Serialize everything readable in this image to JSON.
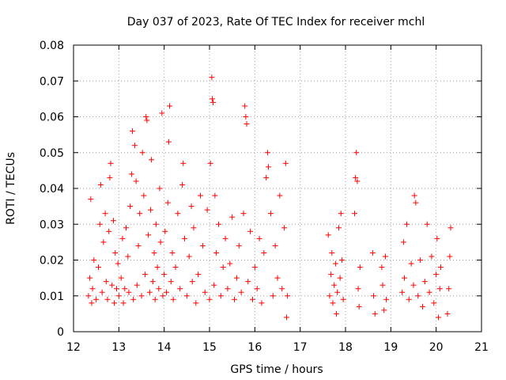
{
  "chart_data": {
    "type": "scatter",
    "title": "Day 037 of 2023, Rate Of TEC Index for receiver mchl",
    "xlabel": "GPS time / hours",
    "ylabel": "ROTI / TECUs",
    "xlim": [
      12,
      21
    ],
    "ylim": [
      0,
      0.08
    ],
    "xticks": [
      "12",
      "13",
      "14",
      "15",
      "16",
      "17",
      "18",
      "19",
      "20",
      "21"
    ],
    "yticks": [
      "0",
      "0.01",
      "0.02",
      "0.03",
      "0.04",
      "0.05",
      "0.06",
      "0.07",
      "0.08"
    ],
    "grid": true,
    "marker": "+",
    "color": "#ff0000",
    "series": [
      {
        "points": [
          [
            12.33,
            0.01
          ],
          [
            12.36,
            0.015
          ],
          [
            12.38,
            0.037
          ],
          [
            12.4,
            0.008
          ],
          [
            12.42,
            0.012
          ],
          [
            12.45,
            0.02
          ],
          [
            12.5,
            0.009
          ],
          [
            12.55,
            0.018
          ],
          [
            12.58,
            0.03
          ],
          [
            12.6,
            0.041
          ],
          [
            12.63,
            0.011
          ],
          [
            12.66,
            0.025
          ],
          [
            12.7,
            0.033
          ],
          [
            12.72,
            0.014
          ],
          [
            12.75,
            0.009
          ],
          [
            12.78,
            0.028
          ],
          [
            12.8,
            0.043
          ],
          [
            12.82,
            0.047
          ],
          [
            12.85,
            0.013
          ],
          [
            12.88,
            0.031
          ],
          [
            12.9,
            0.008
          ],
          [
            12.92,
            0.022
          ],
          [
            12.95,
            0.012
          ],
          [
            12.98,
            0.019
          ],
          [
            13.0,
            0.01
          ],
          [
            13.05,
            0.015
          ],
          [
            13.08,
            0.026
          ],
          [
            13.1,
            0.008
          ],
          [
            13.13,
            0.012
          ],
          [
            13.16,
            0.029
          ],
          [
            13.2,
            0.021
          ],
          [
            13.22,
            0.011
          ],
          [
            13.25,
            0.035
          ],
          [
            13.28,
            0.044
          ],
          [
            13.3,
            0.056
          ],
          [
            13.32,
            0.009
          ],
          [
            13.35,
            0.052
          ],
          [
            13.38,
            0.042
          ],
          [
            13.4,
            0.013
          ],
          [
            13.43,
            0.024
          ],
          [
            13.46,
            0.033
          ],
          [
            13.5,
            0.01
          ],
          [
            13.52,
            0.05
          ],
          [
            13.55,
            0.038
          ],
          [
            13.58,
            0.016
          ],
          [
            13.6,
            0.06
          ],
          [
            13.62,
            0.059
          ],
          [
            13.65,
            0.027
          ],
          [
            13.68,
            0.011
          ],
          [
            13.7,
            0.034
          ],
          [
            13.72,
            0.048
          ],
          [
            13.75,
            0.014
          ],
          [
            13.78,
            0.022
          ],
          [
            13.8,
            0.009
          ],
          [
            13.82,
            0.03
          ],
          [
            13.85,
            0.018
          ],
          [
            13.88,
            0.012
          ],
          [
            13.9,
            0.04
          ],
          [
            13.92,
            0.025
          ],
          [
            13.95,
            0.061
          ],
          [
            13.97,
            0.01
          ],
          [
            14.0,
            0.016
          ],
          [
            14.02,
            0.028
          ],
          [
            14.05,
            0.011
          ],
          [
            14.08,
            0.036
          ],
          [
            14.1,
            0.053
          ],
          [
            14.12,
            0.063
          ],
          [
            14.15,
            0.014
          ],
          [
            14.18,
            0.022
          ],
          [
            14.2,
            0.009
          ],
          [
            14.25,
            0.018
          ],
          [
            14.3,
            0.033
          ],
          [
            14.35,
            0.012
          ],
          [
            14.4,
            0.041
          ],
          [
            14.42,
            0.047
          ],
          [
            14.45,
            0.026
          ],
          [
            14.5,
            0.01
          ],
          [
            14.55,
            0.021
          ],
          [
            14.6,
            0.035
          ],
          [
            14.62,
            0.014
          ],
          [
            14.65,
            0.029
          ],
          [
            14.7,
            0.008
          ],
          [
            14.75,
            0.016
          ],
          [
            14.8,
            0.038
          ],
          [
            14.85,
            0.024
          ],
          [
            14.9,
            0.011
          ],
          [
            14.95,
            0.034
          ],
          [
            15.0,
            0.009
          ],
          [
            15.02,
            0.047
          ],
          [
            15.05,
            0.071
          ],
          [
            15.06,
            0.065
          ],
          [
            15.08,
            0.064
          ],
          [
            15.1,
            0.013
          ],
          [
            15.12,
            0.038
          ],
          [
            15.15,
            0.022
          ],
          [
            15.2,
            0.03
          ],
          [
            15.25,
            0.01
          ],
          [
            15.3,
            0.018
          ],
          [
            15.35,
            0.026
          ],
          [
            15.4,
            0.012
          ],
          [
            15.45,
            0.019
          ],
          [
            15.5,
            0.032
          ],
          [
            15.55,
            0.009
          ],
          [
            15.6,
            0.015
          ],
          [
            15.65,
            0.024
          ],
          [
            15.7,
            0.011
          ],
          [
            15.75,
            0.033
          ],
          [
            15.78,
            0.063
          ],
          [
            15.8,
            0.06
          ],
          [
            15.82,
            0.058
          ],
          [
            15.85,
            0.014
          ],
          [
            15.9,
            0.028
          ],
          [
            15.95,
            0.009
          ],
          [
            16.0,
            0.018
          ],
          [
            16.05,
            0.012
          ],
          [
            16.1,
            0.026
          ],
          [
            16.15,
            0.008
          ],
          [
            16.2,
            0.022
          ],
          [
            16.25,
            0.043
          ],
          [
            16.28,
            0.05
          ],
          [
            16.3,
            0.046
          ],
          [
            16.35,
            0.033
          ],
          [
            16.4,
            0.01
          ],
          [
            16.45,
            0.024
          ],
          [
            16.5,
            0.015
          ],
          [
            16.55,
            0.038
          ],
          [
            16.6,
            0.012
          ],
          [
            16.65,
            0.029
          ],
          [
            16.68,
            0.047
          ],
          [
            16.7,
            0.004
          ],
          [
            16.72,
            0.01
          ],
          [
            17.62,
            0.027
          ],
          [
            17.65,
            0.01
          ],
          [
            17.68,
            0.016
          ],
          [
            17.7,
            0.022
          ],
          [
            17.72,
            0.008
          ],
          [
            17.75,
            0.013
          ],
          [
            17.78,
            0.019
          ],
          [
            17.8,
            0.005
          ],
          [
            17.82,
            0.011
          ],
          [
            17.85,
            0.029
          ],
          [
            17.88,
            0.015
          ],
          [
            17.9,
            0.033
          ],
          [
            17.92,
            0.02
          ],
          [
            17.95,
            0.009
          ],
          [
            18.2,
            0.033
          ],
          [
            18.22,
            0.043
          ],
          [
            18.24,
            0.05
          ],
          [
            18.26,
            0.042
          ],
          [
            18.28,
            0.012
          ],
          [
            18.3,
            0.007
          ],
          [
            18.32,
            0.018
          ],
          [
            18.6,
            0.022
          ],
          [
            18.62,
            0.01
          ],
          [
            18.65,
            0.005
          ],
          [
            18.8,
            0.018
          ],
          [
            18.82,
            0.013
          ],
          [
            18.85,
            0.006
          ],
          [
            18.88,
            0.021
          ],
          [
            18.9,
            0.009
          ],
          [
            19.25,
            0.011
          ],
          [
            19.28,
            0.025
          ],
          [
            19.3,
            0.015
          ],
          [
            19.35,
            0.03
          ],
          [
            19.4,
            0.009
          ],
          [
            19.45,
            0.019
          ],
          [
            19.5,
            0.013
          ],
          [
            19.52,
            0.038
          ],
          [
            19.55,
            0.036
          ],
          [
            19.6,
            0.01
          ],
          [
            19.65,
            0.02
          ],
          [
            19.7,
            0.007
          ],
          [
            19.75,
            0.014
          ],
          [
            19.8,
            0.03
          ],
          [
            19.85,
            0.011
          ],
          [
            19.9,
            0.021
          ],
          [
            19.95,
            0.008
          ],
          [
            20.0,
            0.016
          ],
          [
            20.02,
            0.026
          ],
          [
            20.05,
            0.004
          ],
          [
            20.08,
            0.012
          ],
          [
            20.1,
            0.018
          ],
          [
            20.25,
            0.005
          ],
          [
            20.28,
            0.012
          ],
          [
            20.3,
            0.021
          ],
          [
            20.32,
            0.029
          ]
        ]
      }
    ]
  }
}
